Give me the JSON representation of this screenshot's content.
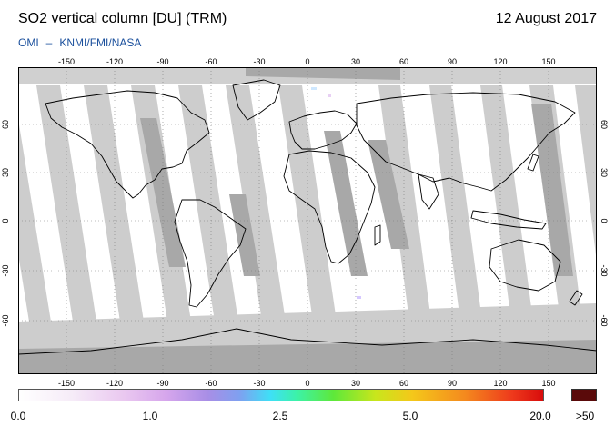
{
  "header": {
    "title": "SO2 vertical column [DU] (TRM)",
    "date": "12 August 2017",
    "credit_instrument": "OMI",
    "credit_separator": "–",
    "credit_agencies": "KNMI/FMI/NASA"
  },
  "map": {
    "projection": "equirectangular",
    "lon_range": [
      -180,
      180
    ],
    "lat_range": [
      -90,
      90
    ],
    "lon_ticks": [
      "-150",
      "-120",
      "-90",
      "-60",
      "-30",
      "0",
      "30",
      "60",
      "90",
      "120",
      "150"
    ],
    "lat_ticks": [
      "60",
      "30",
      "0",
      "-30",
      "-60"
    ],
    "colors": {
      "no_data_swath": "#cdcdcd",
      "land_gap": "#a8a8a8",
      "polar_night": "#a8a8a8",
      "low_value": "#ffffff",
      "coastline": "#000000"
    }
  },
  "colorbar": {
    "labels": [
      "0.0",
      "1.0",
      "2.5",
      "5.0",
      "20.0"
    ],
    "overflow_label": ">50",
    "overflow_color": "#5a0a0a"
  }
}
